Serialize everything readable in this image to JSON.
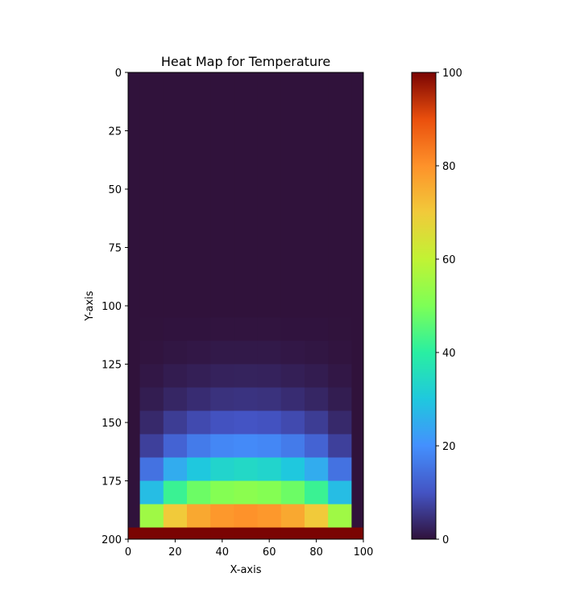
{
  "chart_data": {
    "type": "heatmap",
    "title": "Heat Map for Temperature",
    "xlabel": "X-axis",
    "ylabel": "Y-axis",
    "x": [
      0,
      10,
      20,
      30,
      40,
      50,
      60,
      70,
      80,
      90,
      100
    ],
    "y": [
      0,
      10,
      20,
      30,
      40,
      50,
      60,
      70,
      80,
      90,
      100,
      110,
      120,
      130,
      140,
      150,
      160,
      170,
      180,
      190,
      200
    ],
    "z": [
      [
        0,
        0,
        0,
        0,
        0,
        0,
        0,
        0,
        0,
        0,
        0
      ],
      [
        0,
        0,
        0,
        0,
        0,
        0,
        0,
        0,
        0,
        0,
        0
      ],
      [
        0,
        0,
        0,
        0,
        0,
        0,
        0,
        0,
        0,
        0,
        0
      ],
      [
        0,
        0,
        0,
        0,
        0,
        0,
        0,
        0,
        0,
        0,
        0
      ],
      [
        0,
        0,
        0,
        0,
        0,
        0,
        0,
        0,
        0,
        0,
        0
      ],
      [
        0,
        0,
        0,
        0,
        0,
        0,
        0,
        0,
        0,
        0,
        0
      ],
      [
        0,
        0,
        0,
        0,
        0,
        0,
        0,
        0,
        0,
        0,
        0
      ],
      [
        0,
        0,
        0,
        0,
        0,
        0,
        0,
        0,
        0,
        0,
        0
      ],
      [
        0,
        0,
        0,
        0,
        0,
        0,
        0,
        0,
        0,
        0,
        0
      ],
      [
        0,
        0,
        0,
        0,
        0,
        0,
        0,
        0,
        0,
        0,
        0
      ],
      [
        0,
        0,
        0,
        0,
        0,
        0,
        0,
        0,
        0,
        0,
        0
      ],
      [
        0,
        0.1,
        0.2,
        0.2,
        0.3,
        0.3,
        0.3,
        0.2,
        0.2,
        0.1,
        0
      ],
      [
        0,
        0.3,
        0.6,
        0.8,
        1,
        1,
        1,
        0.8,
        0.6,
        0.3,
        0
      ],
      [
        0,
        0.8,
        1.5,
        2,
        2.4,
        2.5,
        2.4,
        2,
        1.5,
        0.8,
        0
      ],
      [
        0,
        1.6,
        3,
        4,
        4.8,
        5,
        4.8,
        4,
        3,
        1.6,
        0
      ],
      [
        0,
        3.5,
        6.5,
        8.5,
        9.7,
        10,
        9.7,
        8.5,
        6.5,
        3.5,
        0
      ],
      [
        0,
        7,
        12.5,
        16.5,
        18.5,
        19,
        18.5,
        16.5,
        12.5,
        7,
        0
      ],
      [
        0,
        15,
        25,
        30,
        33,
        34,
        33,
        30,
        25,
        15,
        0
      ],
      [
        0,
        28,
        42,
        48,
        51,
        52,
        51,
        48,
        42,
        28,
        0
      ],
      [
        0,
        55,
        70,
        76,
        79,
        80,
        79,
        76,
        70,
        55,
        0
      ],
      [
        100,
        100,
        100,
        100,
        100,
        100,
        100,
        100,
        100,
        100,
        100
      ]
    ],
    "xlim": [
      0,
      100
    ],
    "ylim": [
      200,
      0
    ],
    "xticks": [
      0,
      20,
      40,
      60,
      80,
      100
    ],
    "yticks": [
      0,
      25,
      50,
      75,
      100,
      125,
      150,
      175,
      200
    ],
    "clim": [
      0,
      100
    ],
    "cticks": [
      0,
      20,
      40,
      60,
      80,
      100
    ],
    "colormap": [
      "#30123b",
      "#4454c4",
      "#4490fe",
      "#1fc8de",
      "#29efa2",
      "#7dff56",
      "#c1f334",
      "#f1ca3a",
      "#fe922a",
      "#ea4f0d",
      "#7a0403"
    ]
  }
}
